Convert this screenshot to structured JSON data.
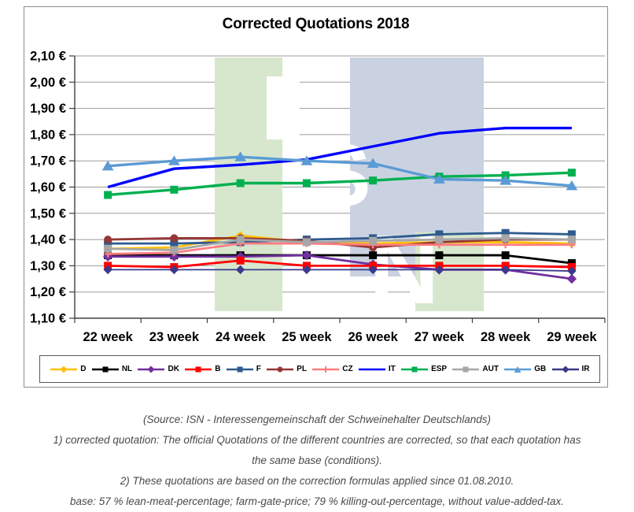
{
  "chart_data": {
    "type": "line",
    "title": "Corrected Quotations 2018",
    "categories": [
      "22 week",
      "23 week",
      "24 week",
      "25 week",
      "26 week",
      "27 week",
      "28 week",
      "29 week"
    ],
    "xlabel": "",
    "ylabel": "",
    "y_unit": "€",
    "ylim": [
      1.1,
      2.1
    ],
    "y_tick_step": 0.1,
    "y_tick_labels": [
      "2,10 €",
      "2,00 €",
      "1,90 €",
      "1,80 €",
      "1,70 €",
      "1,60 €",
      "1,50 €",
      "1,40 €",
      "1,30 €",
      "1,20 €",
      "1,10 €"
    ],
    "grid": true,
    "legend_position": "bottom",
    "series": [
      {
        "name": "D",
        "color": "#FFC000",
        "marker": "diamond",
        "values": [
          1.365,
          1.37,
          1.415,
          1.39,
          1.385,
          1.39,
          1.39,
          1.385
        ]
      },
      {
        "name": "NL",
        "color": "#000000",
        "marker": "square",
        "values": [
          1.34,
          1.34,
          1.34,
          1.34,
          1.34,
          1.34,
          1.34,
          1.31
        ]
      },
      {
        "name": "DK",
        "color": "#7030A0",
        "marker": "diamond",
        "values": [
          1.335,
          1.335,
          1.335,
          1.34,
          1.305,
          1.285,
          1.285,
          1.25
        ]
      },
      {
        "name": "B",
        "color": "#FF0000",
        "marker": "square",
        "values": [
          1.3,
          1.295,
          1.32,
          1.3,
          1.3,
          1.3,
          1.3,
          1.295
        ]
      },
      {
        "name": "F",
        "color": "#2E5B8F",
        "marker": "square",
        "values": [
          1.385,
          1.385,
          1.39,
          1.4,
          1.405,
          1.42,
          1.425,
          1.42
        ]
      },
      {
        "name": "PL",
        "color": "#953735",
        "marker": "circle",
        "values": [
          1.4,
          1.405,
          1.405,
          1.395,
          1.37,
          1.39,
          1.4,
          1.4
        ]
      },
      {
        "name": "CZ",
        "color": "#FF7C80",
        "marker": "plus",
        "values": [
          1.345,
          1.35,
          1.385,
          1.385,
          1.38,
          1.38,
          1.38,
          1.38
        ]
      },
      {
        "name": "IT",
        "color": "#0000FF",
        "marker": "none",
        "values": [
          1.6,
          1.67,
          1.685,
          1.705,
          1.755,
          1.805,
          1.825,
          1.825
        ]
      },
      {
        "name": "ESP",
        "color": "#00B050",
        "marker": "square",
        "values": [
          1.57,
          1.59,
          1.615,
          1.615,
          1.625,
          1.64,
          1.645,
          1.655
        ]
      },
      {
        "name": "AUT",
        "color": "#A6A6A6",
        "marker": "square",
        "values": [
          1.365,
          1.36,
          1.4,
          1.39,
          1.395,
          1.4,
          1.405,
          1.4
        ]
      },
      {
        "name": "GB",
        "color": "#5B9BD5",
        "marker": "triangle",
        "values": [
          1.68,
          1.7,
          1.715,
          1.7,
          1.69,
          1.63,
          1.625,
          1.605
        ]
      },
      {
        "name": "IR",
        "color": "#3A3A8C",
        "marker": "diamond",
        "values": [
          1.285,
          1.285,
          1.285,
          1.285,
          1.285,
          1.285,
          1.285,
          1.28
        ]
      }
    ]
  },
  "watermark": {
    "letters": [
      "I",
      "S",
      "N"
    ],
    "green": "#d7e7cd",
    "blue": "#cad2e1"
  },
  "footer": {
    "lines": [
      "(Source: ISN - Interessengemeinschaft der Schweinehalter Deutschlands)",
      "1) corrected quotation: The official Quotations of the different countries are corrected, so that each quotation has",
      "the same base (conditions).",
      "2) These quotations are based on the correction formulas applied since 01.08.2010.",
      "base: 57 % lean-meat-percentage; farm-gate-price; 79 % killing-out-percentage, without value-added-tax."
    ]
  }
}
